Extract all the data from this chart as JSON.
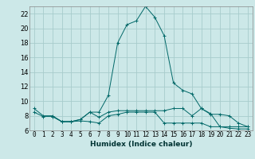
{
  "xlabel": "Humidex (Indice chaleur)",
  "bg_color": "#cce8e8",
  "line_color": "#006868",
  "grid_color": "#a8cccc",
  "xlim": [
    -0.5,
    23.5
  ],
  "ylim": [
    6,
    23
  ],
  "xticks": [
    0,
    1,
    2,
    3,
    4,
    5,
    6,
    7,
    8,
    9,
    10,
    11,
    12,
    13,
    14,
    15,
    16,
    17,
    18,
    19,
    20,
    21,
    22,
    23
  ],
  "yticks": [
    6,
    8,
    10,
    12,
    14,
    16,
    18,
    20,
    22
  ],
  "line1_x": [
    0,
    1,
    2,
    3,
    4,
    5,
    6,
    7,
    8,
    9,
    10,
    11,
    12,
    13,
    14,
    15,
    16,
    17,
    18,
    19,
    20,
    21,
    22,
    23
  ],
  "line1_y": [
    9.0,
    8.0,
    8.0,
    7.2,
    7.2,
    7.5,
    8.5,
    8.5,
    10.8,
    18.0,
    20.5,
    21.0,
    23.0,
    21.5,
    19.0,
    12.5,
    11.5,
    11.0,
    9.0,
    8.3,
    6.5,
    6.3,
    6.2,
    6.2
  ],
  "line2_x": [
    0,
    1,
    2,
    3,
    4,
    5,
    6,
    7,
    8,
    9,
    10,
    11,
    12,
    13,
    14,
    15,
    16,
    17,
    18,
    19,
    20,
    21,
    22,
    23
  ],
  "line2_y": [
    8.5,
    7.9,
    7.9,
    7.2,
    7.2,
    7.3,
    7.2,
    7.0,
    8.0,
    8.2,
    8.5,
    8.5,
    8.5,
    8.5,
    7.0,
    7.0,
    7.0,
    7.0,
    7.0,
    6.5,
    6.5,
    6.5,
    6.5,
    6.5
  ],
  "line3_x": [
    2,
    3,
    4,
    5,
    6,
    7,
    8,
    9,
    10,
    11,
    12,
    13,
    14,
    15,
    16,
    17,
    18,
    19,
    20,
    21,
    22,
    23
  ],
  "line3_y": [
    7.9,
    7.2,
    7.2,
    7.5,
    8.5,
    7.8,
    8.5,
    8.7,
    8.7,
    8.7,
    8.7,
    8.7,
    8.7,
    9.0,
    9.0,
    8.0,
    9.0,
    8.2,
    8.2,
    8.0,
    7.0,
    6.5
  ],
  "tick_fontsize": 5.5,
  "xlabel_fontsize": 6.5
}
